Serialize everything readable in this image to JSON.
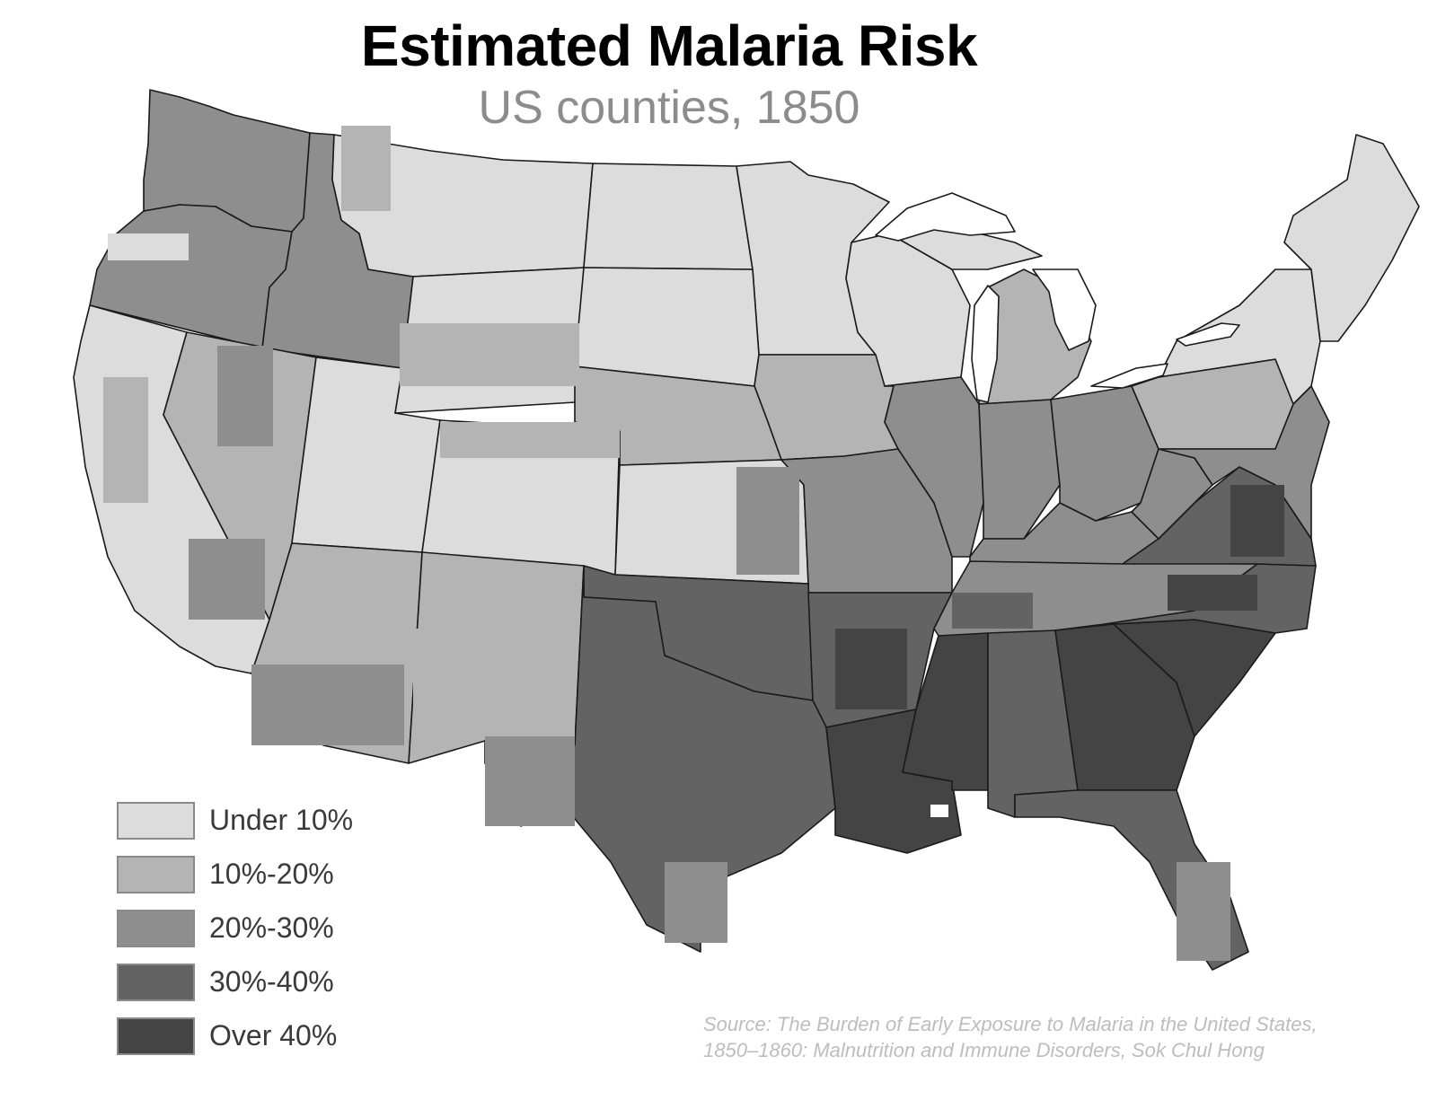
{
  "header": {
    "title": "Estimated Malaria Risk",
    "subtitle": "US counties, 1850"
  },
  "legend": [
    {
      "label": "Under 10%",
      "color": "#dcdcdc"
    },
    {
      "label": "10%-20%",
      "color": "#b4b4b4"
    },
    {
      "label": "20%-30%",
      "color": "#8e8e8e"
    },
    {
      "label": "30%-40%",
      "color": "#636363"
    },
    {
      "label": "Over 40%",
      "color": "#444444"
    }
  ],
  "source": "Source: The Burden of Early Exposure to Malaria in the United States, 1850–1860: Malnutrition and Immune Disorders, Sok Chul Hong",
  "colors": {
    "state_border": "#1a1a1a",
    "lake": "#ffffff",
    "background": "#ffffff"
  },
  "regions": [
    {
      "name": "Washington",
      "risk": "20%-30%"
    },
    {
      "name": "Oregon",
      "risk": "20%-30%"
    },
    {
      "name": "Idaho",
      "risk": "20%-30%"
    },
    {
      "name": "Montana",
      "risk": "Under 10%"
    },
    {
      "name": "North Dakota",
      "risk": "Under 10%"
    },
    {
      "name": "Minnesota",
      "risk": "Under 10%"
    },
    {
      "name": "California",
      "risk": "Under 10%"
    },
    {
      "name": "Nevada",
      "risk": "10%-20%"
    },
    {
      "name": "Utah",
      "risk": "Under 10%"
    },
    {
      "name": "Wyoming",
      "risk": "Under 10%"
    },
    {
      "name": "South Dakota",
      "risk": "Under 10%"
    },
    {
      "name": "Iowa",
      "risk": "10%-20%"
    },
    {
      "name": "Wisconsin",
      "risk": "Under 10%"
    },
    {
      "name": "Michigan",
      "risk": "10%-20%"
    },
    {
      "name": "Colorado",
      "risk": "Under 10%"
    },
    {
      "name": "Nebraska",
      "risk": "10%-20%"
    },
    {
      "name": "Kansas",
      "risk": "Under 10%"
    },
    {
      "name": "Missouri",
      "risk": "20%-30%"
    },
    {
      "name": "Illinois",
      "risk": "20%-30%"
    },
    {
      "name": "Indiana",
      "risk": "20%-30%"
    },
    {
      "name": "Ohio",
      "risk": "20%-30%"
    },
    {
      "name": "Arizona",
      "risk": "10%-20%"
    },
    {
      "name": "New Mexico",
      "risk": "10%-20%"
    },
    {
      "name": "Oklahoma",
      "risk": "30%-40%"
    },
    {
      "name": "Arkansas",
      "risk": "30%-40%"
    },
    {
      "name": "Tennessee",
      "risk": "20%-30%"
    },
    {
      "name": "Kentucky",
      "risk": "20%-30%"
    },
    {
      "name": "Texas",
      "risk": "30%-40%"
    },
    {
      "name": "Louisiana",
      "risk": "Over 40%"
    },
    {
      "name": "Mississippi",
      "risk": "Over 40%"
    },
    {
      "name": "Alabama",
      "risk": "30%-40%"
    },
    {
      "name": "Georgia",
      "risk": "Over 40%"
    },
    {
      "name": "Florida",
      "risk": "30%-40%"
    },
    {
      "name": "South Carolina",
      "risk": "Over 40%"
    },
    {
      "name": "North Carolina",
      "risk": "30%-40%"
    },
    {
      "name": "Virginia",
      "risk": "30%-40%"
    },
    {
      "name": "West Virginia",
      "risk": "20%-30%"
    },
    {
      "name": "Pennsylvania",
      "risk": "10%-20%"
    },
    {
      "name": "New York",
      "risk": "Under 10%"
    },
    {
      "name": "New England",
      "risk": "Under 10%"
    },
    {
      "name": "Mid-Atlantic",
      "risk": "20%-30%"
    }
  ]
}
